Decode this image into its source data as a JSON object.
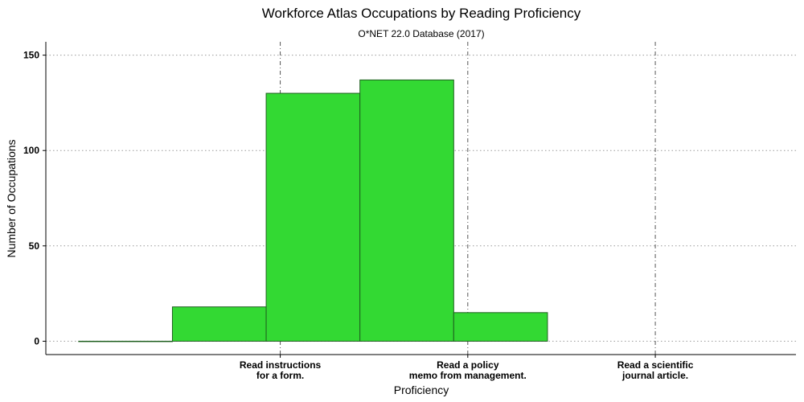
{
  "chart_data": {
    "type": "bar",
    "title": "Workforce Atlas Occupations by Reading Proficiency",
    "subtitle": "O*NET 22.0 Database (2017)",
    "xlabel": "Proficiency",
    "ylabel": "Number of Occupations",
    "xlim": [
      0.5,
      8.5
    ],
    "ylim": [
      -7,
      157
    ],
    "y_ticks": [
      0,
      50,
      100,
      150
    ],
    "x_ticks": [
      {
        "x": 3,
        "label": [
          "Read instructions",
          "for a form."
        ]
      },
      {
        "x": 5,
        "label": [
          "Read a policy",
          "memo from management."
        ]
      },
      {
        "x": 7,
        "label": [
          "Read a scientific",
          "journal article."
        ]
      }
    ],
    "bars": [
      {
        "x0": 0.85,
        "x1": 1.85,
        "value": 0
      },
      {
        "x0": 1.85,
        "x1": 2.85,
        "value": 18
      },
      {
        "x0": 2.85,
        "x1": 3.85,
        "value": 130
      },
      {
        "x0": 3.85,
        "x1": 4.85,
        "value": 137
      },
      {
        "x0": 4.85,
        "x1": 5.85,
        "value": 15
      }
    ],
    "grid": {
      "horizontal": true,
      "vertical": true
    },
    "legend": "none",
    "colors": {
      "bar_fill": "#33d933",
      "bar_stroke": "#1f5f1f"
    }
  }
}
